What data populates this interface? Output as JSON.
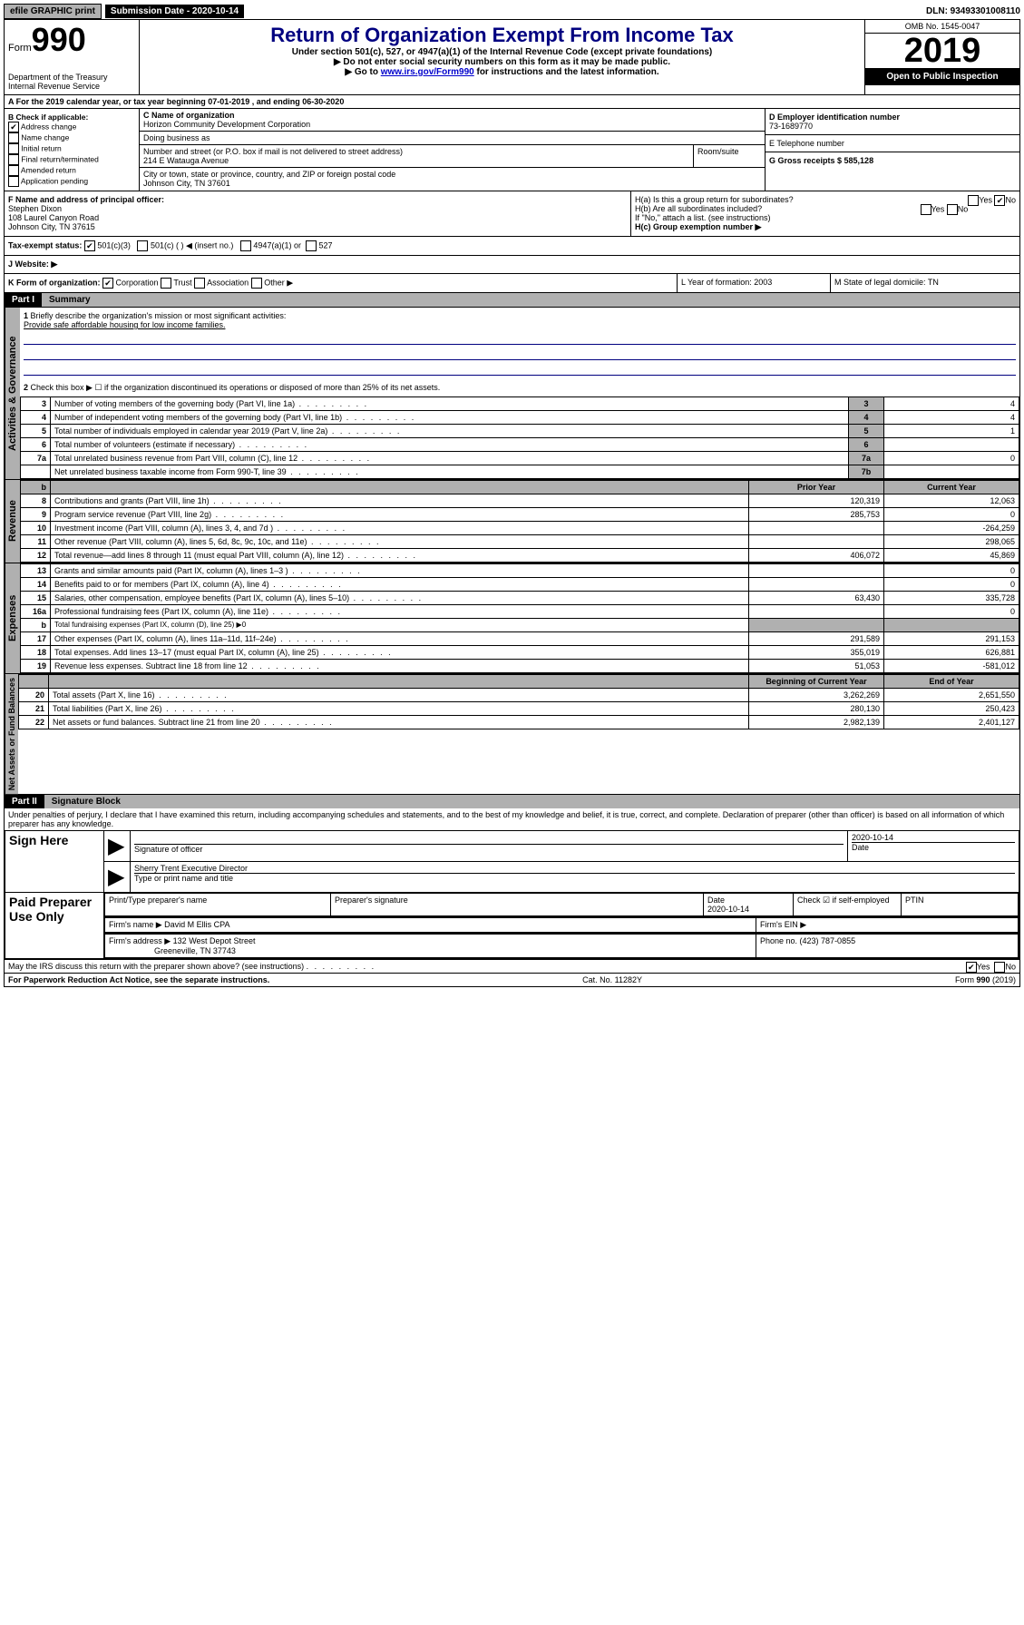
{
  "topbar": {
    "efile": "efile GRAPHIC print",
    "submission": "Submission Date - 2020-10-14",
    "dln": "DLN: 93493301008110"
  },
  "header": {
    "form_label": "Form",
    "form_num": "990",
    "dept": "Department of the Treasury\nInternal Revenue Service",
    "title": "Return of Organization Exempt From Income Tax",
    "subtitle": "Under section 501(c), 527, or 4947(a)(1) of the Internal Revenue Code (except private foundations)",
    "instr1": "▶ Do not enter social security numbers on this form as it may be made public.",
    "instr2_pre": "▶ Go to ",
    "instr2_link": "www.irs.gov/Form990",
    "instr2_post": " for instructions and the latest information.",
    "omb": "OMB No. 1545-0047",
    "year": "2019",
    "open": "Open to Public Inspection"
  },
  "row_a": "A For the 2019 calendar year, or tax year beginning 07-01-2019   , and ending 06-30-2020",
  "col_b": {
    "header": "B Check if applicable:",
    "addr_change": "Address change",
    "name_change": "Name change",
    "initial": "Initial return",
    "final": "Final return/terminated",
    "amended": "Amended return",
    "pending": "Application pending"
  },
  "col_c": {
    "name_label": "C Name of organization",
    "name": "Horizon Community Development Corporation",
    "dba_label": "Doing business as",
    "addr_label": "Number and street (or P.O. box if mail is not delivered to street address)",
    "addr": "214 E Watauga Avenue",
    "room_label": "Room/suite",
    "city_label": "City or town, state or province, country, and ZIP or foreign postal code",
    "city": "Johnson City, TN  37601"
  },
  "col_d": {
    "label": "D Employer identification number",
    "value": "73-1689770"
  },
  "col_e": {
    "label": "E Telephone number",
    "value": ""
  },
  "col_g": {
    "label": "G Gross receipts $ 585,128"
  },
  "col_f": {
    "label": "F  Name and address of principal officer:",
    "name": "Stephen Dixon",
    "addr1": "108 Laurel Canyon Road",
    "addr2": "Johnson City, TN  37615"
  },
  "col_h": {
    "ha": "H(a)  Is this a group return for subordinates?",
    "hb": "H(b)  Are all subordinates included?",
    "hb_note": "If \"No,\" attach a list. (see instructions)",
    "hc": "H(c)  Group exemption number ▶",
    "yes": "Yes",
    "no": "No"
  },
  "tax_status": {
    "label": "Tax-exempt status:",
    "opt1": "501(c)(3)",
    "opt2": "501(c) (  ) ◀ (insert no.)",
    "opt3": "4947(a)(1) or",
    "opt4": "527"
  },
  "website": {
    "label": "J    Website: ▶"
  },
  "klm": {
    "k": "K Form of organization:",
    "k_corp": "Corporation",
    "k_trust": "Trust",
    "k_assoc": "Association",
    "k_other": "Other ▶",
    "l": "L Year of formation: 2003",
    "m": "M State of legal domicile: TN"
  },
  "part1": {
    "header": "Part I",
    "title": "Summary",
    "sidebar1": "Activities & Governance",
    "sidebar2": "Revenue",
    "sidebar3": "Expenses",
    "sidebar4": "Net Assets or Fund Balances",
    "line1_label": "Briefly describe the organization's mission or most significant activities:",
    "line1_text": "Provide safe affordable housing for low income families.",
    "line2": "Check this box ▶ ☐  if the organization discontinued its operations or disposed of more than 25% of its net assets.",
    "rows_gov": [
      {
        "n": "3",
        "label": "Number of voting members of the governing body (Part VI, line 1a)",
        "box": "3",
        "val": "4"
      },
      {
        "n": "4",
        "label": "Number of independent voting members of the governing body (Part VI, line 1b)",
        "box": "4",
        "val": "4"
      },
      {
        "n": "5",
        "label": "Total number of individuals employed in calendar year 2019 (Part V, line 2a)",
        "box": "5",
        "val": "1"
      },
      {
        "n": "6",
        "label": "Total number of volunteers (estimate if necessary)",
        "box": "6",
        "val": ""
      },
      {
        "n": "7a",
        "label": "Total unrelated business revenue from Part VIII, column (C), line 12",
        "box": "7a",
        "val": "0"
      },
      {
        "n": "",
        "label": "Net unrelated business taxable income from Form 990-T, line 39",
        "box": "7b",
        "val": ""
      }
    ],
    "col_prior": "Prior Year",
    "col_current": "Current Year",
    "rows_rev": [
      {
        "n": "8",
        "label": "Contributions and grants (Part VIII, line 1h)",
        "prior": "120,319",
        "curr": "12,063"
      },
      {
        "n": "9",
        "label": "Program service revenue (Part VIII, line 2g)",
        "prior": "285,753",
        "curr": "0"
      },
      {
        "n": "10",
        "label": "Investment income (Part VIII, column (A), lines 3, 4, and 7d )",
        "prior": "",
        "curr": "-264,259"
      },
      {
        "n": "11",
        "label": "Other revenue (Part VIII, column (A), lines 5, 6d, 8c, 9c, 10c, and 11e)",
        "prior": "",
        "curr": "298,065"
      },
      {
        "n": "12",
        "label": "Total revenue—add lines 8 through 11 (must equal Part VIII, column (A), line 12)",
        "prior": "406,072",
        "curr": "45,869"
      }
    ],
    "rows_exp": [
      {
        "n": "13",
        "label": "Grants and similar amounts paid (Part IX, column (A), lines 1–3 )",
        "prior": "",
        "curr": "0"
      },
      {
        "n": "14",
        "label": "Benefits paid to or for members (Part IX, column (A), line 4)",
        "prior": "",
        "curr": "0"
      },
      {
        "n": "15",
        "label": "Salaries, other compensation, employee benefits (Part IX, column (A), lines 5–10)",
        "prior": "63,430",
        "curr": "335,728"
      },
      {
        "n": "16a",
        "label": "Professional fundraising fees (Part IX, column (A), line 11e)",
        "prior": "",
        "curr": "0"
      },
      {
        "n": "b",
        "label": "Total fundraising expenses (Part IX, column (D), line 25) ▶0",
        "prior": "—shade—",
        "curr": "—shade—"
      },
      {
        "n": "17",
        "label": "Other expenses (Part IX, column (A), lines 11a–11d, 11f–24e)",
        "prior": "291,589",
        "curr": "291,153"
      },
      {
        "n": "18",
        "label": "Total expenses. Add lines 13–17 (must equal Part IX, column (A), line 25)",
        "prior": "355,019",
        "curr": "626,881"
      },
      {
        "n": "19",
        "label": "Revenue less expenses. Subtract line 18 from line 12",
        "prior": "51,053",
        "curr": "-581,012"
      }
    ],
    "col_begin": "Beginning of Current Year",
    "col_end": "End of Year",
    "rows_net": [
      {
        "n": "20",
        "label": "Total assets (Part X, line 16)",
        "prior": "3,262,269",
        "curr": "2,651,550"
      },
      {
        "n": "21",
        "label": "Total liabilities (Part X, line 26)",
        "prior": "280,130",
        "curr": "250,423"
      },
      {
        "n": "22",
        "label": "Net assets or fund balances. Subtract line 21 from line 20",
        "prior": "2,982,139",
        "curr": "2,401,127"
      }
    ]
  },
  "part2": {
    "header": "Part II",
    "title": "Signature Block",
    "perjury": "Under penalties of perjury, I declare that I have examined this return, including accompanying schedules and statements, and to the best of my knowledge and belief, it is true, correct, and complete. Declaration of preparer (other than officer) is based on all information of which preparer has any knowledge.",
    "sign_here": "Sign Here",
    "sig_officer": "Signature of officer",
    "sig_date": "2020-10-14",
    "date_label": "Date",
    "sig_name": "Sherry Trent Executive Director",
    "sig_name_label": "Type or print name and title",
    "paid": "Paid Preparer Use Only",
    "prep_name_label": "Print/Type preparer's name",
    "prep_sig_label": "Preparer's signature",
    "prep_date_label": "Date",
    "prep_date": "2020-10-14",
    "self_emp": "Check ☑ if self-employed",
    "ptin": "PTIN",
    "firm_name_label": "Firm's name    ▶",
    "firm_name": "David M Ellis CPA",
    "firm_ein": "Firm's EIN ▶",
    "firm_addr_label": "Firm's address ▶",
    "firm_addr": "132 West Depot Street",
    "firm_city": "Greeneville, TN  37743",
    "phone": "Phone no. (423) 787-0855",
    "discuss": "May the IRS discuss this return with the preparer shown above? (see instructions)",
    "yes": "Yes",
    "no": "No"
  },
  "footer": {
    "left": "For Paperwork Reduction Act Notice, see the separate instructions.",
    "mid": "Cat. No. 11282Y",
    "right": "Form 990 (2019)"
  }
}
